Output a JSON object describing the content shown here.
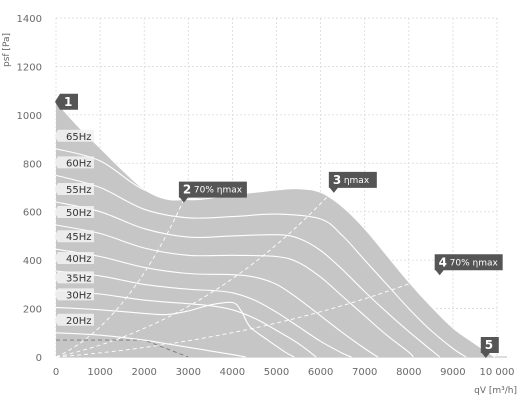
{
  "chart_data": {
    "type": "area",
    "xlabel": "qV [m³/h]",
    "ylabel": "psf [Pa]",
    "xlim": [
      0,
      10000
    ],
    "ylim": [
      0,
      1400
    ],
    "x_ticks": [
      0,
      1000,
      2000,
      3000,
      4000,
      5000,
      6000,
      7000,
      8000,
      9000,
      10000
    ],
    "x_tick_labels": [
      "0",
      "1000",
      "2000",
      "3000",
      "4000",
      "5000",
      "6000",
      "7000",
      "8000",
      "9000",
      "10 000"
    ],
    "y_ticks": [
      0,
      200,
      400,
      600,
      800,
      1000,
      1200,
      1400
    ],
    "y_tick_labels": [
      "0",
      "200",
      "400",
      "600",
      "800",
      "1000",
      "1200",
      "1400"
    ],
    "grid": true,
    "colors": {
      "area": "#c6c6c6",
      "curve": "#ffffff",
      "marker": "#555555",
      "grid": "#d9d9d9",
      "efficiency": "#ffffff"
    },
    "envelope": {
      "x": [
        0,
        500,
        1000,
        1500,
        2000,
        2500,
        3000,
        4000,
        5000,
        5500,
        6000,
        6500,
        7000,
        7500,
        8000,
        8500,
        9000,
        9500,
        9950,
        9950,
        0
      ],
      "y": [
        1050,
        950,
        860,
        770,
        690,
        650,
        650,
        670,
        690,
        695,
        680,
        620,
        530,
        420,
        310,
        210,
        120,
        55,
        0,
        0,
        0
      ]
    },
    "series": [
      {
        "name": "65Hz",
        "x": [
          0,
          1000,
          2000,
          3000,
          4000,
          5000,
          5500,
          6000,
          6500,
          7000,
          7500,
          8000,
          8500,
          9000,
          9500,
          9950
        ],
        "y": [
          860,
          810,
          690,
          650,
          670,
          690,
          695,
          680,
          620,
          530,
          420,
          310,
          210,
          120,
          55,
          0
        ]
      },
      {
        "name": "60Hz",
        "x": [
          0,
          1000,
          2000,
          3000,
          4000,
          5000,
          6000,
          6500,
          7000,
          7500,
          8000,
          8500,
          9000,
          9300
        ],
        "y": [
          750,
          700,
          610,
          575,
          580,
          590,
          570,
          500,
          400,
          300,
          200,
          110,
          35,
          0
        ]
      },
      {
        "name": "55Hz",
        "x": [
          0,
          1000,
          2000,
          3000,
          4000,
          5000,
          5500,
          6000,
          6500,
          7000,
          7500,
          8000,
          8500,
          8700
        ],
        "y": [
          640,
          600,
          530,
          495,
          500,
          505,
          490,
          440,
          360,
          270,
          185,
          105,
          30,
          0
        ]
      },
      {
        "name": "50Hz",
        "x": [
          0,
          1000,
          2000,
          3000,
          4000,
          5000,
          5500,
          6000,
          6500,
          7000,
          7500,
          8000,
          8100
        ],
        "y": [
          545,
          510,
          450,
          420,
          420,
          415,
          390,
          330,
          250,
          170,
          90,
          20,
          0
        ]
      },
      {
        "name": "45Hz",
        "x": [
          0,
          1000,
          2000,
          3000,
          4000,
          4500,
          5000,
          5500,
          6000,
          6500,
          7000,
          7300
        ],
        "y": [
          445,
          415,
          370,
          345,
          340,
          330,
          300,
          240,
          170,
          100,
          35,
          0
        ]
      },
      {
        "name": "40Hz",
        "x": [
          0,
          1000,
          2000,
          3000,
          3500,
          4000,
          4500,
          5000,
          5500,
          6000,
          6500,
          6700
        ],
        "y": [
          355,
          335,
          300,
          280,
          275,
          265,
          235,
          185,
          125,
          65,
          15,
          0
        ]
      },
      {
        "name": "35Hz",
        "x": [
          0,
          1000,
          2000,
          3000,
          3500,
          4000,
          4500,
          5000,
          5500,
          5900
        ],
        "y": [
          275,
          260,
          235,
          220,
          212,
          195,
          160,
          110,
          55,
          0
        ]
      },
      {
        "name": "30Hz",
        "x": [
          0,
          1000,
          2000,
          2500,
          3000,
          3500,
          4000,
          4200,
          4400,
          4800,
          5200,
          5400
        ],
        "y": [
          205,
          195,
          180,
          175,
          190,
          215,
          225,
          190,
          125,
          70,
          20,
          0
        ]
      },
      {
        "name": "20Hz",
        "x": [
          0,
          1000,
          2000,
          2500,
          3000,
          3500,
          4000,
          4300
        ],
        "y": [
          100,
          90,
          70,
          55,
          40,
          25,
          10,
          0
        ]
      }
    ],
    "efficiency_lines": [
      {
        "x": [
          0,
          2900
        ],
        "y": [
          0,
          650
        ]
      },
      {
        "x": [
          0,
          6300
        ],
        "y": [
          0,
          690
        ]
      },
      {
        "x": [
          0,
          8700
        ],
        "y": [
          0,
          350
        ]
      },
      {
        "x": [
          0,
          2000,
          3000
        ],
        "y": [
          70,
          70,
          0
        ]
      }
    ],
    "markers": [
      {
        "id": "1",
        "label": "",
        "x": 0,
        "y": 1050
      },
      {
        "id": "2",
        "label": "70% ηmax",
        "x": 2900,
        "y": 650
      },
      {
        "id": "3",
        "label": "ηmax",
        "x": 6300,
        "y": 690
      },
      {
        "id": "4",
        "label": "70% ηmax",
        "x": 8700,
        "y": 350
      },
      {
        "id": "5",
        "label": "",
        "x": 9950,
        "y": 0
      }
    ]
  }
}
